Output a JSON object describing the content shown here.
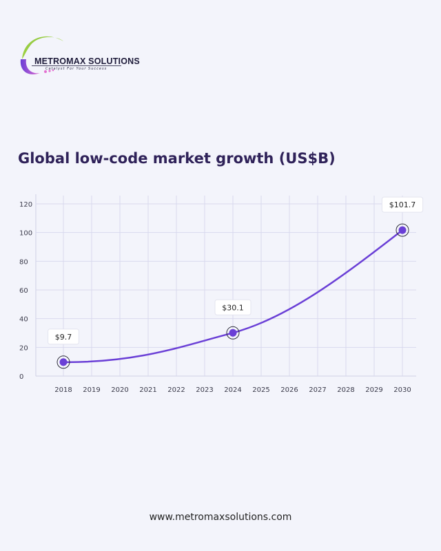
{
  "brand": {
    "name": "METROMAX SOLUTIONS",
    "tagline": "Catalyst For Your Success",
    "colors": {
      "green": "#8bc53f",
      "purple": "#6a3fd6",
      "pink": "#e36fd0"
    }
  },
  "footer": {
    "website": "www.metromaxsolutions.com"
  },
  "chart_data": {
    "type": "line",
    "title": "Global low-code market growth (US$B)",
    "xlabel": "",
    "ylabel": "",
    "x_categories": [
      "2018",
      "2019",
      "2020",
      "2021",
      "2022",
      "2023",
      "2024",
      "2025",
      "2026",
      "2027",
      "2028",
      "2029",
      "2030"
    ],
    "ylim": [
      0,
      120
    ],
    "y_ticks": [
      0,
      20,
      40,
      60,
      80,
      100,
      120
    ],
    "grid": true,
    "line_color": "#6a3fd6",
    "series": [
      {
        "values": [
          9.7,
          null,
          null,
          null,
          null,
          null,
          30.1,
          null,
          null,
          null,
          null,
          null,
          101.7
        ]
      }
    ],
    "annotations": [
      {
        "x": "2018",
        "value": 9.7,
        "label": "$9.7"
      },
      {
        "x": "2024",
        "value": 30.1,
        "label": "$30.1"
      },
      {
        "x": "2030",
        "value": 101.7,
        "label": "$101.7"
      }
    ]
  }
}
